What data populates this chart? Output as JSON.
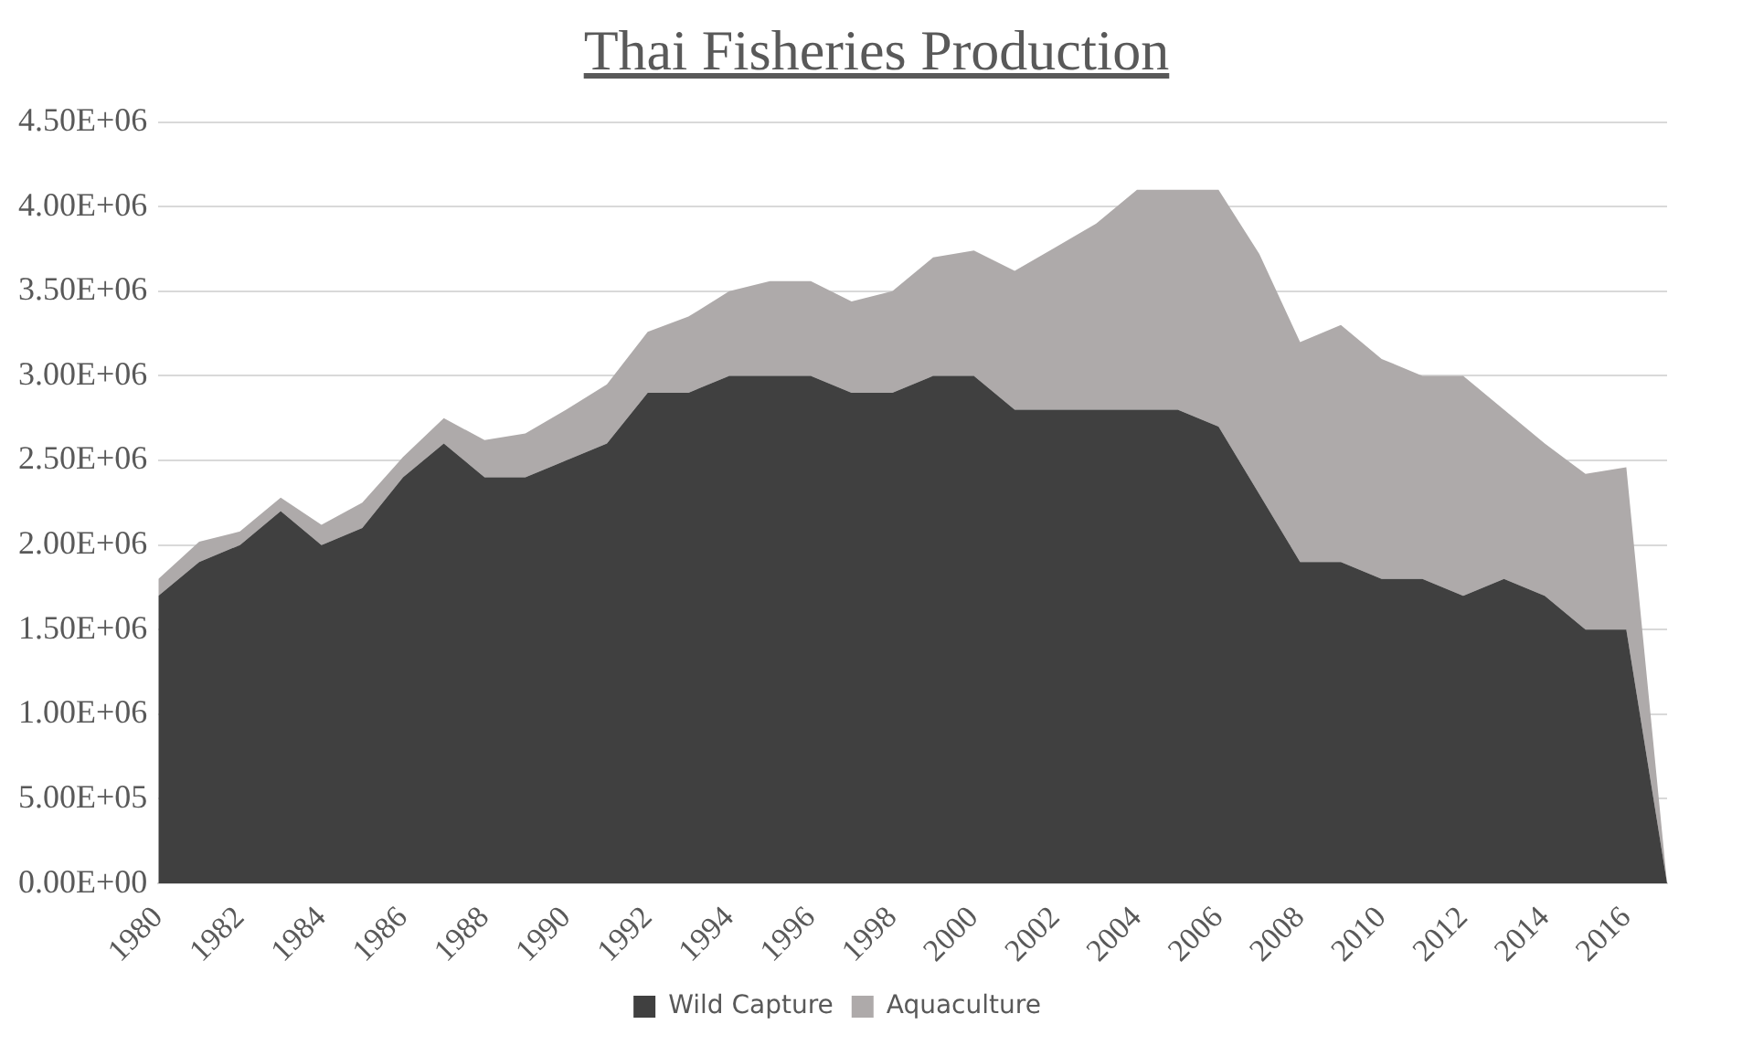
{
  "chart_data": {
    "type": "area",
    "title": "Thai Fisheries Production",
    "stacked": true,
    "categories": [
      "1980",
      null,
      "1982",
      null,
      "1984",
      null,
      "1986",
      null,
      "1988",
      null,
      "1990",
      null,
      "1992",
      null,
      "1994",
      null,
      "1996",
      null,
      "1998",
      null,
      "2000",
      null,
      "2002",
      null,
      "2004",
      null,
      "2006",
      null,
      "2008",
      null,
      "2010",
      null,
      "2012",
      null,
      "2014",
      null,
      "2016",
      null
    ],
    "series": [
      {
        "name": "Wild Capture",
        "color": "#404040",
        "values": [
          1700000,
          1900000,
          2000000,
          2200000,
          2000000,
          2100000,
          2400000,
          2600000,
          2400000,
          2400000,
          2500000,
          2600000,
          2900000,
          2900000,
          3000000,
          3000000,
          3000000,
          2900000,
          2900000,
          3000000,
          3000000,
          2800000,
          2800000,
          2800000,
          2800000,
          2800000,
          2700000,
          2300000,
          1900000,
          1900000,
          1800000,
          1800000,
          1700000,
          1800000,
          1700000,
          1500000,
          1500000,
          0
        ]
      },
      {
        "name": "Aquaculture",
        "color": "#aeaaaa",
        "values": [
          100000,
          120000,
          80000,
          80000,
          120000,
          150000,
          120000,
          150000,
          220000,
          260000,
          300000,
          350000,
          360000,
          450000,
          500000,
          560000,
          560000,
          540000,
          600000,
          700000,
          740000,
          820000,
          960000,
          1100000,
          1300000,
          1300000,
          1400000,
          1420000,
          1300000,
          1400000,
          1300000,
          1200000,
          1300000,
          1000000,
          900000,
          920000,
          960000,
          0
        ]
      }
    ],
    "ylim": [
      0,
      4500000
    ],
    "yticks": [
      {
        "value": 0,
        "label": "0.00E+00"
      },
      {
        "value": 500000,
        "label": "5.00E+05"
      },
      {
        "value": 1000000,
        "label": "1.00E+06"
      },
      {
        "value": 1500000,
        "label": "1.50E+06"
      },
      {
        "value": 2000000,
        "label": "2.00E+06"
      },
      {
        "value": 2500000,
        "label": "2.50E+06"
      },
      {
        "value": 3000000,
        "label": "3.00E+06"
      },
      {
        "value": 3500000,
        "label": "3.50E+06"
      },
      {
        "value": 4000000,
        "label": "4.00E+06"
      },
      {
        "value": 4500000,
        "label": "4.50E+06"
      }
    ],
    "grid": "y",
    "legend": "bottom"
  }
}
